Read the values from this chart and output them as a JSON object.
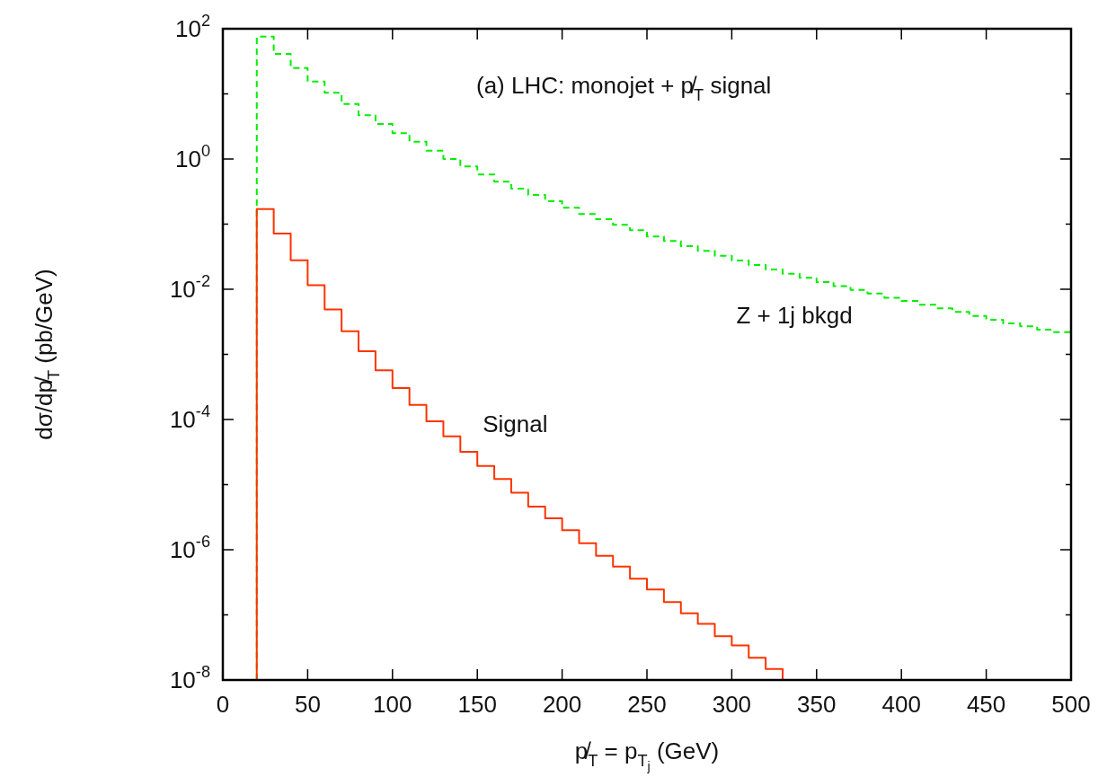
{
  "chart_data": {
    "type": "histogram",
    "title": "(a) LHC: monojet + p̸$_{T}$ signal",
    "xlabel": "p̸$_{T}$ = p$_{T}$$_{j}$  (GeV)",
    "ylabel": "dσ/dp̸$_{T}$   (pb/GeV)",
    "log": "y",
    "grid": false,
    "xlim": [
      0,
      500
    ],
    "xticks": [
      0,
      50,
      100,
      150,
      200,
      250,
      300,
      350,
      400,
      450,
      500
    ],
    "ylim": [
      1e-08,
      100
    ],
    "yticks": [
      {
        "value": 1e-08,
        "label": "10$^{-8}$"
      },
      {
        "value": 1e-07,
        "label": null
      },
      {
        "value": 1e-06,
        "label": "10$^{-6}$"
      },
      {
        "value": 1e-05,
        "label": null
      },
      {
        "value": 0.0001,
        "label": "10$^{-4}$"
      },
      {
        "value": 0.001,
        "label": null
      },
      {
        "value": 0.01,
        "label": "10$^{-2}$"
      },
      {
        "value": 0.1,
        "label": null
      },
      {
        "value": 1,
        "label": "10$^{0}$"
      },
      {
        "value": 10,
        "label": null
      },
      {
        "value": 100,
        "label": "10$^{2}$"
      }
    ],
    "bins": [
      20,
      30,
      40,
      50,
      60,
      70,
      80,
      90,
      100,
      110,
      120,
      130,
      140,
      150,
      160,
      170,
      180,
      190,
      200,
      210,
      220,
      230,
      240,
      250,
      260,
      270,
      280,
      290,
      300,
      310,
      320,
      330,
      340,
      350,
      360,
      370,
      380,
      390,
      400,
      410,
      420,
      430,
      440,
      450,
      460,
      470,
      480,
      490,
      500
    ],
    "series": [
      {
        "name": "Z + 1j bkgd",
        "color": "#00ee00",
        "line_style": "dashed",
        "values": [
          76,
          41,
          25,
          15.5,
          10.4,
          7.0,
          4.7,
          3.45,
          2.49,
          1.85,
          1.34,
          1.0,
          0.77,
          0.58,
          0.45,
          0.35,
          0.28,
          0.225,
          0.178,
          0.143,
          0.119,
          0.0975,
          0.0805,
          0.0645,
          0.055,
          0.046,
          0.0388,
          0.0327,
          0.0276,
          0.0236,
          0.0201,
          0.0173,
          0.015,
          0.0129,
          0.0112,
          0.0098,
          0.0086,
          0.0074,
          0.0066,
          0.0058,
          0.0051,
          0.0045,
          0.0039,
          0.0034,
          0.003,
          0.0027,
          0.0024,
          0.0022
        ]
      },
      {
        "name": "Signal",
        "color": "#ff3300",
        "line_style": "solid",
        "values": [
          0.17,
          0.0716,
          0.0279,
          0.0115,
          0.0049,
          0.00227,
          0.00112,
          0.00057,
          0.000304,
          0.000168,
          9.4e-05,
          5.5e-05,
          3.2e-05,
          1.94e-05,
          1.22e-05,
          7.5e-06,
          4.6e-06,
          3.04e-06,
          1.99e-06,
          1.26e-06,
          8.1e-07,
          5.5e-07,
          3.6e-07,
          2.45e-07,
          1.57e-07,
          1.06e-07,
          7.3e-08,
          4.7e-08,
          3.4e-08,
          2.2e-08,
          1.47e-08,
          null,
          null,
          null,
          null,
          null,
          null,
          null,
          null,
          null,
          null,
          null,
          null,
          null,
          null,
          null,
          null,
          null
        ]
      }
    ]
  }
}
